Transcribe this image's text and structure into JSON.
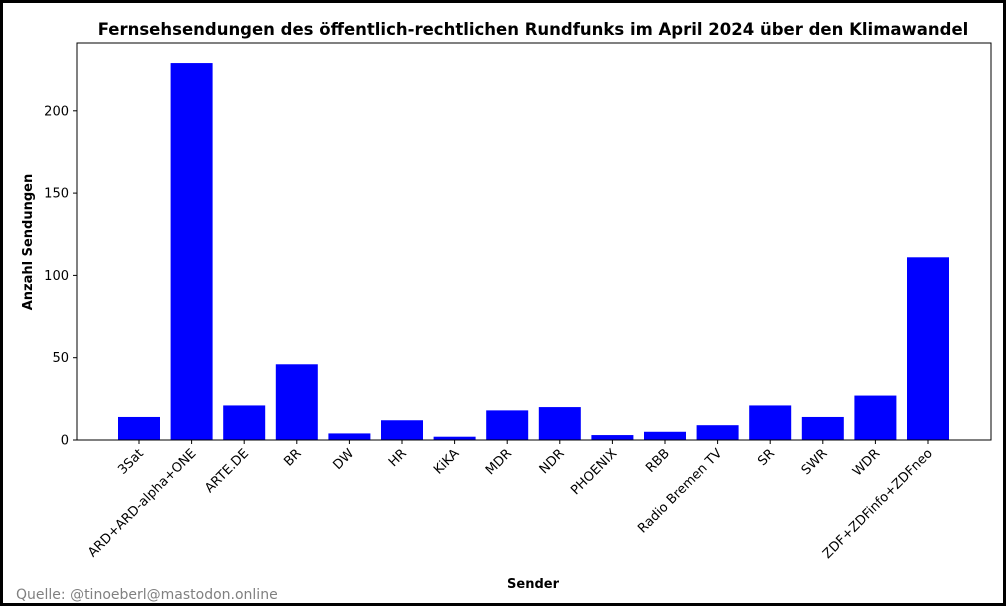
{
  "source_note": "Quelle: @tinoeberl@mastodon.online",
  "colors": {
    "bar": "#0000ff",
    "axis": "#000000",
    "frame": "#000000",
    "source": "#808080"
  },
  "chart_data": {
    "type": "bar",
    "title": "Fernsehsendungen des öffentlich-rechtlichen Rundfunks im April 2024 über den Klimawandel",
    "xlabel": "Sender",
    "ylabel": "Anzahl Sendungen",
    "categories": [
      "3Sat",
      "ARD+ARD-alpha+ONE",
      "ARTE.DE",
      "BR",
      "DW",
      "HR",
      "KiKA",
      "MDR",
      "NDR",
      "PHOENIX",
      "RBB",
      "Radio Bremen TV",
      "SR",
      "SWR",
      "WDR",
      "ZDF+ZDFinfo+ZDFneo"
    ],
    "values": [
      14,
      229,
      21,
      46,
      4,
      12,
      2,
      18,
      20,
      3,
      5,
      9,
      21,
      14,
      27,
      111
    ],
    "yticks": [
      0,
      50,
      100,
      150,
      200
    ],
    "ylim": [
      0,
      240
    ],
    "grid": false,
    "legend": "none"
  }
}
